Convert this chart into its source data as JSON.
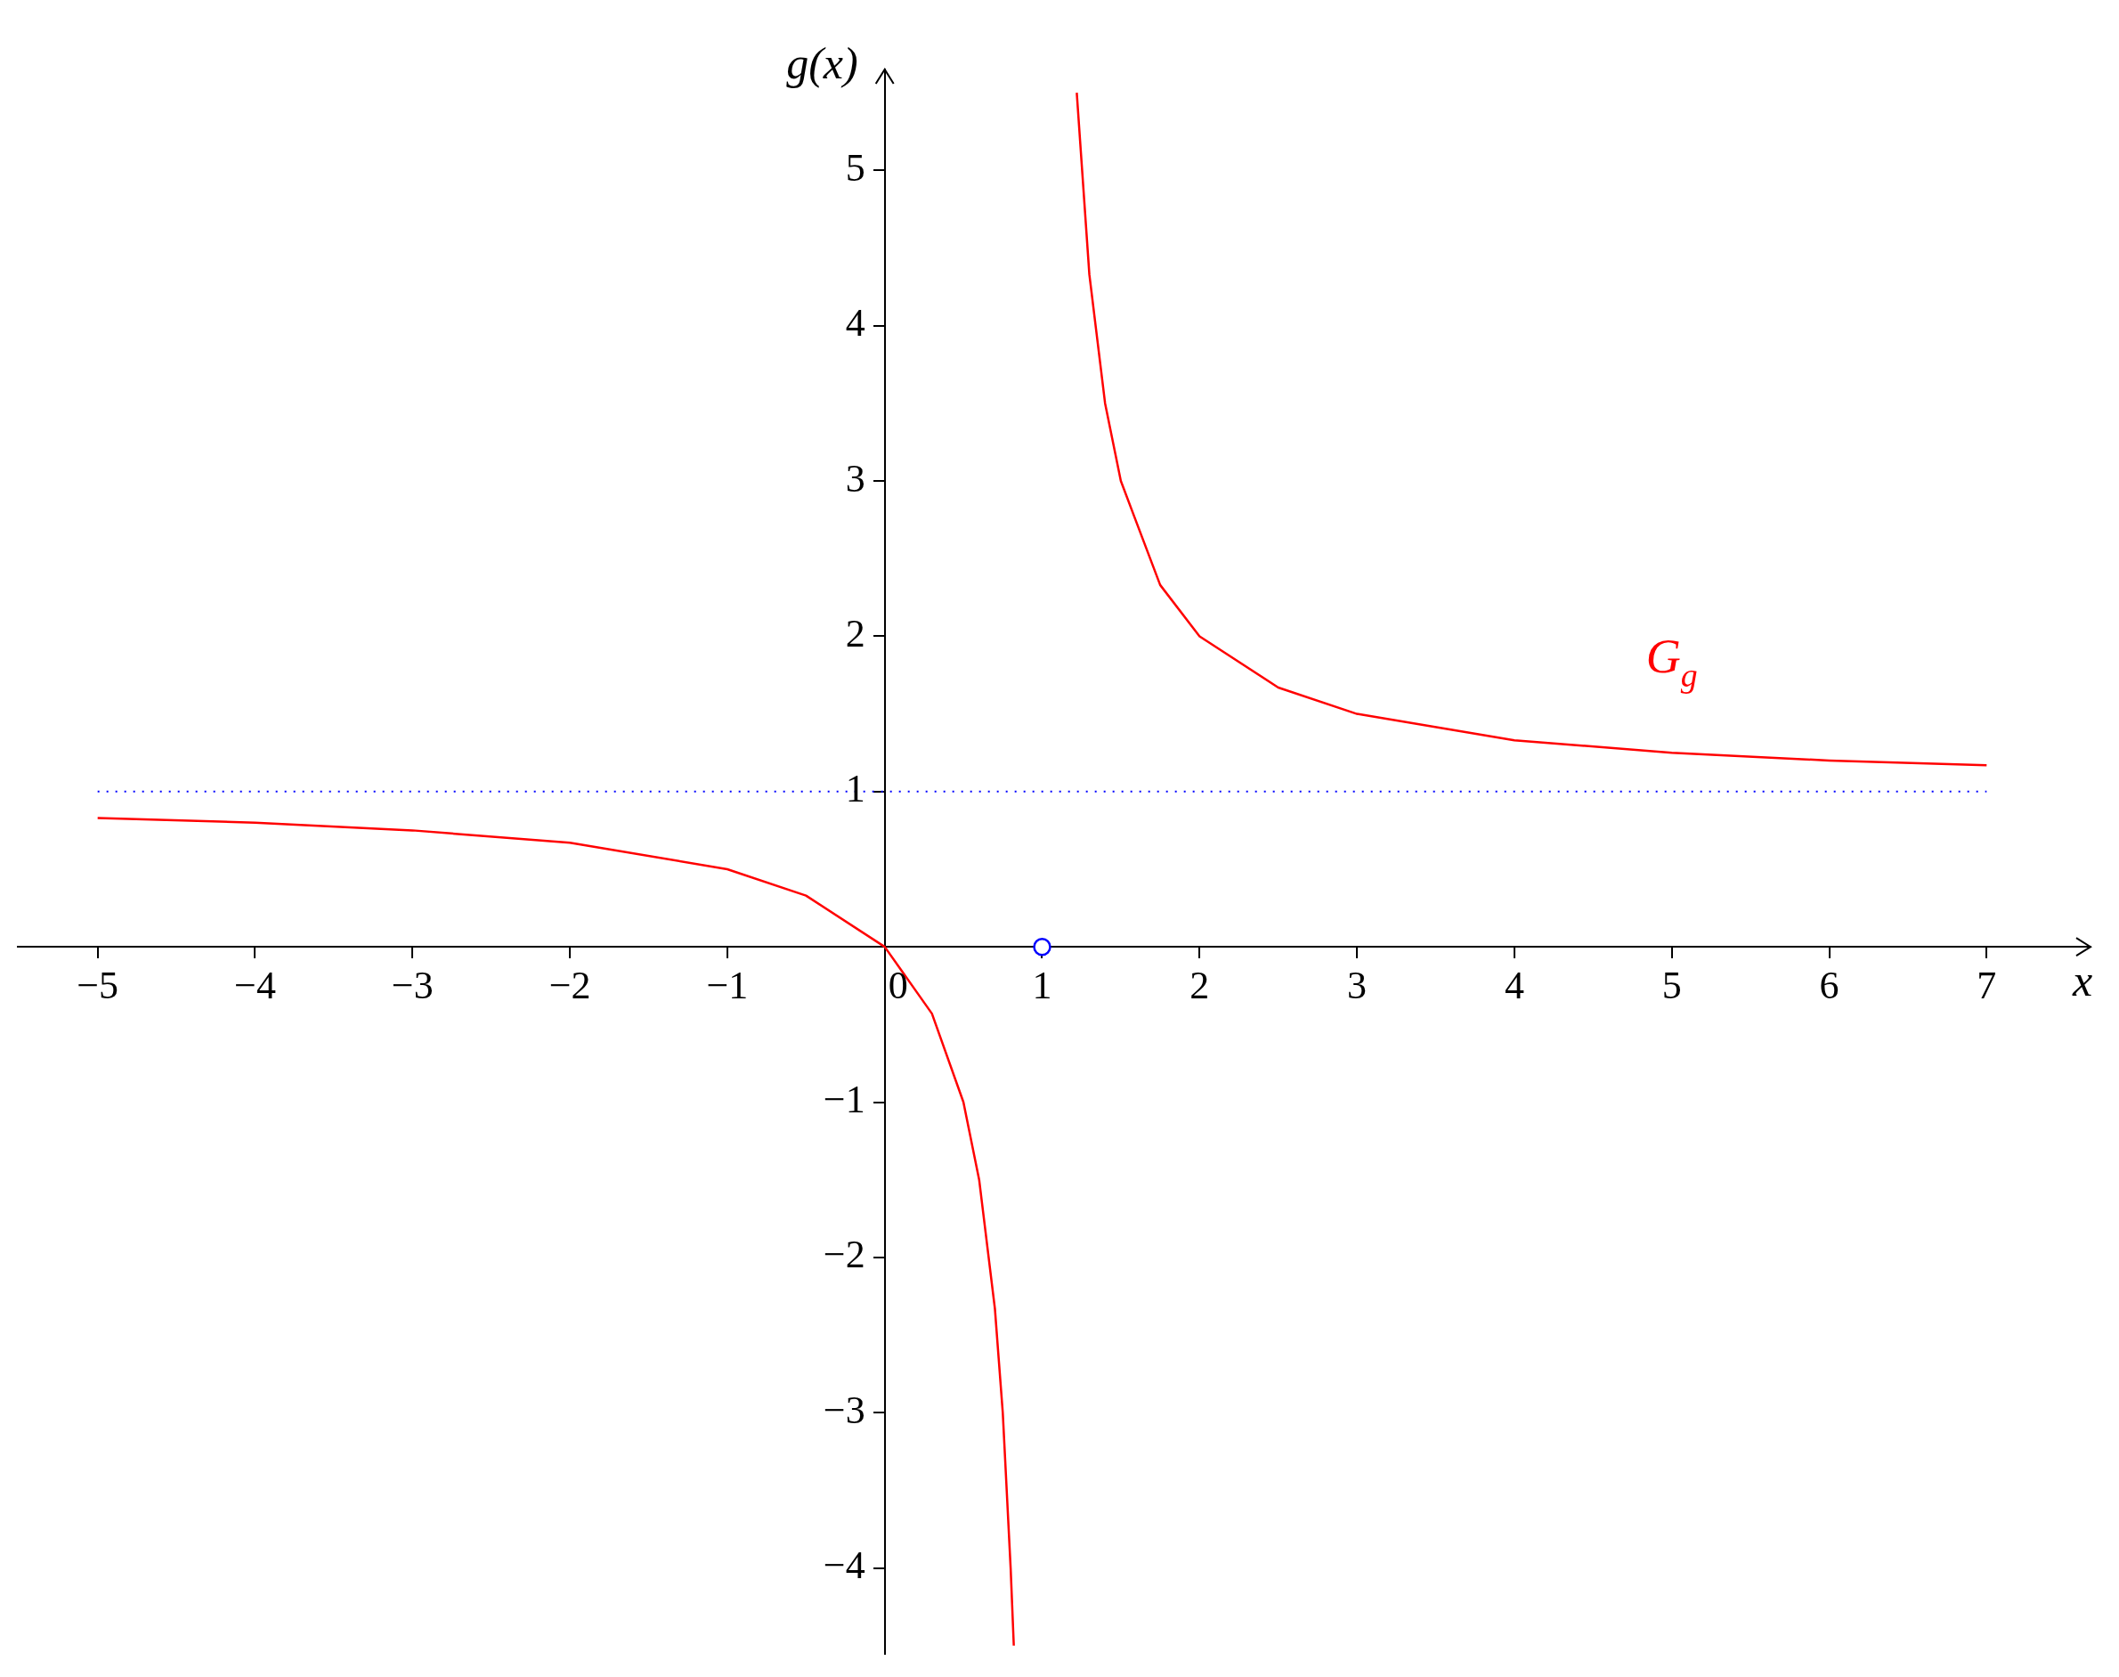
{
  "chart_data": {
    "type": "line",
    "xlabel": "x",
    "ylabel": "g(x)",
    "xlim": [
      -5.51,
      7.66
    ],
    "ylim": [
      -4.55,
      5.65
    ],
    "xticks": [
      {
        "value": -5,
        "label": "−5"
      },
      {
        "value": -4,
        "label": "−4"
      },
      {
        "value": -3,
        "label": "−3"
      },
      {
        "value": -2,
        "label": "−2"
      },
      {
        "value": -1,
        "label": "−1"
      },
      0,
      1,
      2,
      3,
      4,
      5,
      6,
      7
    ],
    "yticks": [
      {
        "value": -4,
        "label": "−4"
      },
      {
        "value": -3,
        "label": "−3"
      },
      {
        "value": -2,
        "label": "−2"
      },
      {
        "value": -1,
        "label": "−1"
      },
      1,
      2,
      3,
      4,
      5
    ],
    "grid": false,
    "legend": false,
    "marker": "none",
    "line_style": "solid",
    "ref_lines": [
      {
        "axis": "y",
        "value": 1,
        "color": "#0000ff",
        "line_style": "dotted"
      }
    ],
    "series": [
      {
        "color": "#ff0000",
        "x": [
          -5,
          -4,
          -3,
          -2,
          -1,
          -0.5,
          0,
          0.3,
          0.5,
          0.6,
          0.7,
          0.75,
          0.8,
          0.82
        ],
        "values": [
          0.83,
          0.8,
          0.75,
          0.67,
          0.5,
          0.33,
          0,
          -0.43,
          -1,
          -1.5,
          -2.33,
          -3,
          -4,
          -4.5
        ]
      },
      {
        "name": "G$_{g}$",
        "color": "#ff0000",
        "x": [
          1.22,
          1.3,
          1.4,
          1.5,
          1.75,
          2,
          2.5,
          3,
          4,
          5,
          6,
          7
        ],
        "values": [
          5.5,
          4.33,
          3.5,
          3,
          2.33,
          2,
          1.67,
          1.5,
          1.33,
          1.25,
          1.2,
          1.17
        ]
      },
      {
        "type": "scatter",
        "color": "#0000ff",
        "marker": "circle",
        "x": [
          1
        ],
        "values": [
          0
        ]
      }
    ]
  }
}
